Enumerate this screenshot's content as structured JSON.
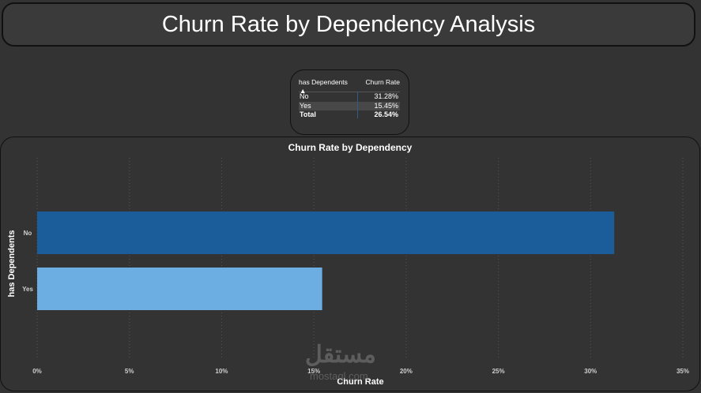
{
  "header": {
    "title": "Churn Rate by Dependency Analysis"
  },
  "table": {
    "columns": [
      "has Dependents",
      "Churn Rate"
    ],
    "rows": [
      {
        "label": "No",
        "value": "31.28%"
      },
      {
        "label": "Yes",
        "value": "15.45%"
      }
    ],
    "total": {
      "label": "Total",
      "value": "26.54%"
    },
    "sort_icon": "sort-ascending-icon"
  },
  "chart_data": {
    "type": "bar",
    "orientation": "horizontal",
    "title": "Churn Rate by Dependency",
    "xlabel": "Churn Rate",
    "ylabel": "has Dependents",
    "categories": [
      "No",
      "Yes"
    ],
    "values": [
      31.28,
      15.45
    ],
    "colors": [
      "#1b5c9b",
      "#6cade2"
    ],
    "xlim": [
      0,
      35
    ],
    "xticks": [
      "0%",
      "5%",
      "10%",
      "15%",
      "20%",
      "25%",
      "30%",
      "35%"
    ],
    "grid": true
  },
  "watermark": {
    "text": "مستقل",
    "sub": "mostaql.com"
  }
}
